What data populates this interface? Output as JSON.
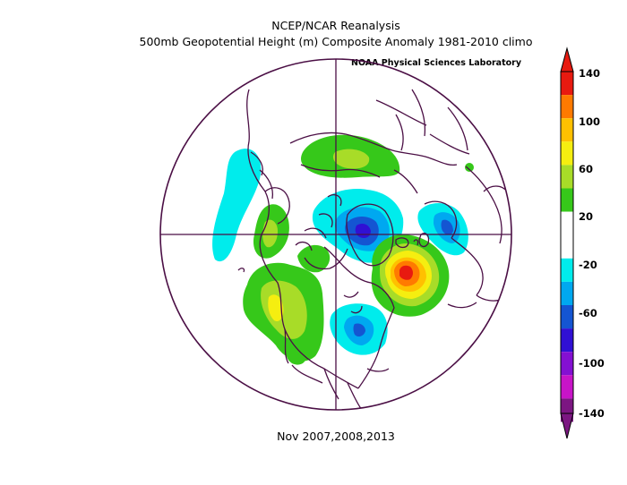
{
  "header": {
    "title_line1": "NCEP/NCAR Reanalysis",
    "title_line2": "500mb Geopotential Height (m) Composite Anomaly 1981-2010 climo",
    "credit": "NOAA Physical Sciences Laboratory"
  },
  "footer": {
    "caption": "Nov 2007,2008,2013"
  },
  "map": {
    "projection": "north polar stereographic",
    "variable": "500mb geopotential height anomaly",
    "units": "m",
    "line_color": "#4b0f45",
    "anomalies": [
      {
        "region": "North Atlantic / west of British Isles",
        "peak_m": 120
      },
      {
        "region": "Greenland / Baffin Bay",
        "peak_m": -80
      },
      {
        "region": "Scandinavia / Barents",
        "peak_m": -60
      },
      {
        "region": "eastern United States",
        "peak_m": -60
      },
      {
        "region": "western North America / Alaska",
        "peak_m": 80
      },
      {
        "region": "Siberia",
        "peak_m": 60
      },
      {
        "region": "North Pacific",
        "peak_m": -20
      }
    ]
  },
  "colorbar": {
    "labels": [
      "140",
      "100",
      "60",
      "20",
      "-20",
      "-60",
      "-100",
      "-140"
    ],
    "colors": [
      "#e81a10",
      "#ff7a00",
      "#ffc000",
      "#f5ee10",
      "#a8dc28",
      "#36c81a",
      "#ffffff",
      "#ffffff",
      "#00ecec",
      "#00a8f0",
      "#1455d2",
      "#3010d4",
      "#8410d2",
      "#c814c8",
      "#7c1682"
    ]
  }
}
